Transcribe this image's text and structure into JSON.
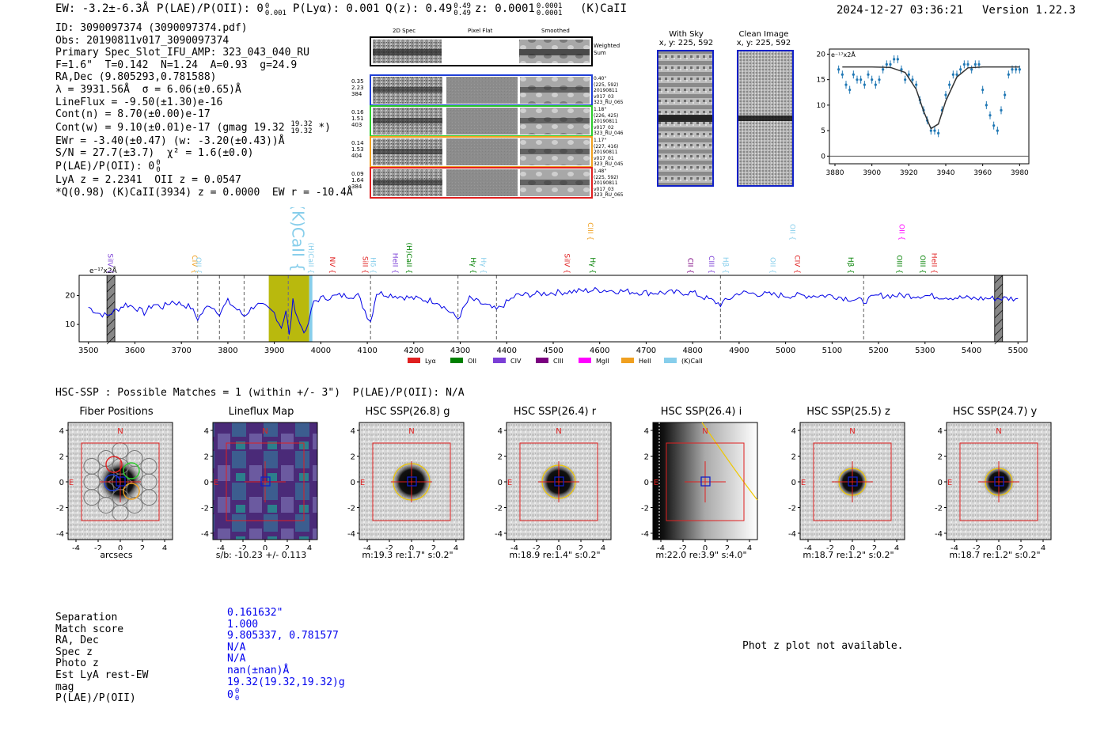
{
  "header": {
    "ew": "EW: -3.2±-6.3Å",
    "plae_label": "P(LAE)/P(OII): 0",
    "plae_sup": "0",
    "plae_sub": "0.001",
    "plya": "P(Lyα): 0.001",
    "qz_label": "Q(z): 0.49",
    "qz_sup": "0.49",
    "qz_sub": "0.49",
    "z_label": "z: 0.0001",
    "z_sup": "0.0001",
    "z_sub": "0.0001",
    "line_id": "(K)CaII",
    "datetime": "2024-12-27 03:36:21",
    "version": "Version 1.22.3"
  },
  "info": {
    "l1": "ID: 3090097374 (3090097374.pdf)",
    "l2": "Obs: 20190811v017_3090097374",
    "l3": "Primary Spec_Slot_IFU_AMP: 323_043_040_RU",
    "l4": "F=1.6\"  T=0.142  N=1.24  A=0.93  g=24.9",
    "l5": "RA,Dec (9.805293,0.781588)",
    "l6": "λ = 3931.56Å  σ = 6.06(±0.65)Å",
    "l7": "LineFlux = -9.50(±1.30)e-16",
    "l8": "Cont(n) = 8.70(±0.00)e-17",
    "l9": "Cont(w) = 9.10(±0.01)e-17 (gmag 19.32",
    "l9_sup": "19.32",
    "l9_sub": "19.32",
    "l9_end": "*)",
    "l10": "EWr = -3.40(±0.47) (w: -3.20(±0.43))Å",
    "l11": "S/N = 27.7(±3.7)  χ² = 1.6(±0.0)",
    "l12": "P(LAE)/P(OII): 0",
    "l12_sup": "0",
    "l12_sub": "0",
    "l13": "LyA z = 2.2341  OII z = 0.0547",
    "l14": "*Q(0.98) (K)CaII(3934) z = 0.0000  EW r = -10.4Å"
  },
  "cutouts": {
    "col_2d": "2D Spec",
    "col_flat": "Pixel Flat",
    "col_smooth": "Smoothed",
    "weighted": "Weighted Sum",
    "rows": [
      {
        "left": [
          "0.35",
          "2.23",
          "384"
        ],
        "right": [
          "0.40\"",
          "(225, 592)",
          "20190811",
          "v017_03",
          "323_RU_065"
        ],
        "color": "#1f3fd6"
      },
      {
        "left": [
          "0.16",
          "1.51",
          "403"
        ],
        "right": [
          "1.18\"",
          "(226, 425)",
          "20190811",
          "v017_02",
          "323_RU_046"
        ],
        "color": "#2dcc2d"
      },
      {
        "left": [
          "0.14",
          "1.53",
          "404"
        ],
        "right": [
          "1.17\"",
          "(227, 416)",
          "20190811",
          "v017_01",
          "323_RU_045"
        ],
        "color": "#f0a020"
      },
      {
        "left": [
          "0.09",
          "1.64",
          "384"
        ],
        "right": [
          "1.48\"",
          "(225, 592)",
          "20190811",
          "v017_03",
          "323_RU_065"
        ],
        "color": "#e02020"
      }
    ]
  },
  "sky": {
    "with_sky": "With Sky",
    "with_sky_xy": "x, y: 225, 592",
    "clean": "Clean Image",
    "clean_xy": "x, y: 225, 592"
  },
  "zoom_plot": {
    "unit": "e⁻¹⁷x2Å",
    "xticks": [
      "3880",
      "3900",
      "3920",
      "3940",
      "3960",
      "3980"
    ],
    "yticks": [
      "0",
      "5",
      "10",
      "15",
      "20"
    ]
  },
  "spectrum": {
    "unit": "e⁻¹⁷x2Å",
    "xticks": [
      "3500",
      "3600",
      "3700",
      "3800",
      "3900",
      "4000",
      "4100",
      "4200",
      "4300",
      "4400",
      "4500",
      "4600",
      "4700",
      "4800",
      "4900",
      "5000",
      "5100",
      "5200",
      "5300",
      "5400",
      "5500"
    ],
    "yticks": [
      "10",
      "20"
    ],
    "line_labels": [
      {
        "t": "SiIV",
        "w": 3537,
        "c": "#7b3fd6",
        "row": 1
      },
      {
        "t": "CIV",
        "w": 3718,
        "c": "#f0a020",
        "row": 1
      },
      {
        "t": "OII",
        "w": 3727,
        "c": "#87ceeb",
        "row": 1
      },
      {
        "t": "(K)CaII",
        "w": 3934,
        "c": "#87ceeb",
        "row": 0
      },
      {
        "t": "(H)CaII",
        "w": 3969,
        "c": "#87ceeb",
        "row": 1
      },
      {
        "t": "NV",
        "w": 4015,
        "c": "#e02020",
        "row": 1
      },
      {
        "t": "SiII",
        "w": 4085,
        "c": "#e02020",
        "row": 1
      },
      {
        "t": "Hδ",
        "w": 4102,
        "c": "#87ceeb",
        "row": 1
      },
      {
        "t": "HeII",
        "w": 4150,
        "c": "#7b3fd6",
        "row": 1
      },
      {
        "t": "(H)CaII",
        "w": 4180,
        "c": "#008000",
        "row": 1
      },
      {
        "t": "Hγ",
        "w": 4318,
        "c": "#008000",
        "row": 1
      },
      {
        "t": "Hγ",
        "w": 4340,
        "c": "#87ceeb",
        "row": 1
      },
      {
        "t": "SiIV",
        "w": 4520,
        "c": "#e02020",
        "row": 1
      },
      {
        "t": "CIII",
        "w": 4570,
        "c": "#f0a020",
        "row": 2
      },
      {
        "t": "Hγ",
        "w": 4575,
        "c": "#008000",
        "row": 1
      },
      {
        "t": "CII",
        "w": 4785,
        "c": "#7b0080",
        "row": 1
      },
      {
        "t": "CIII",
        "w": 4830,
        "c": "#7b3fd6",
        "row": 1
      },
      {
        "t": "Hβ",
        "w": 4861,
        "c": "#87ceeb",
        "row": 1
      },
      {
        "t": "OII",
        "w": 4962,
        "c": "#87ceeb",
        "row": 1
      },
      {
        "t": "OII",
        "w": 5005,
        "c": "#87ceeb",
        "row": 2
      },
      {
        "t": "CIV",
        "w": 5015,
        "c": "#e02020",
        "row": 1
      },
      {
        "t": "Hβ",
        "w": 5130,
        "c": "#008000",
        "row": 1
      },
      {
        "t": "OIII",
        "w": 5235,
        "c": "#008000",
        "row": 1
      },
      {
        "t": "OII",
        "w": 5240,
        "c": "#ff00ff",
        "row": 2
      },
      {
        "t": "OIII",
        "w": 5285,
        "c": "#008000",
        "row": 1
      },
      {
        "t": "HeII",
        "w": 5310,
        "c": "#e02020",
        "row": 1
      }
    ],
    "dashed_lines": [
      3735,
      3782,
      3835,
      3930,
      4107,
      4295,
      4378,
      4860,
      5168
    ],
    "legend": [
      {
        "label": "Lyα",
        "color": "#e02020"
      },
      {
        "label": "OII",
        "color": "#008000"
      },
      {
        "label": "CIV",
        "color": "#7b3fd6"
      },
      {
        "label": "CIII",
        "color": "#7b0080"
      },
      {
        "label": "MgII",
        "color": "#ff00ff"
      },
      {
        "label": "HeII",
        "color": "#f0a020"
      },
      {
        "label": "(K)CaII",
        "color": "#87ceeb"
      }
    ]
  },
  "hsc": {
    "title": "HSC-SSP : Possible Matches = 1 (within +/- 3\")  P(LAE)/P(OII): N/A",
    "panels": [
      {
        "title": "Fiber Positions",
        "caption": "arcsecs"
      },
      {
        "title": "Lineflux Map",
        "caption": "s/b: -10.23 +/- 0.113"
      },
      {
        "title": "HSC SSP(26.8) g",
        "caption": "m:19.3  re:1.7\"  s:0.2\""
      },
      {
        "title": "HSC SSP(26.4) r",
        "caption": "m:18.9  re:1.4\"  s:0.2\""
      },
      {
        "title": "HSC SSP(26.4) i",
        "caption": "m:22.0  re:3.9\"  s:4.0\""
      },
      {
        "title": "HSC SSP(25.5) z",
        "caption": "m:18.7  re:1.2\"  s:0.2\""
      },
      {
        "title": "HSC SSP(24.7) y",
        "caption": "m:18.7  re:1.2\"  s:0.2\""
      }
    ],
    "ticks": [
      "4",
      "2",
      "0",
      "-2",
      "-4"
    ],
    "xticks": [
      "-4",
      "-2",
      "0",
      "2",
      "4"
    ],
    "north": "N",
    "east": "E"
  },
  "match": {
    "labels": [
      "Separation",
      "Match score",
      "RA, Dec",
      "Spec z",
      "Photo z",
      "Est LyA rest-EW",
      "mag",
      "P(LAE)/P(OII)"
    ],
    "values": [
      "0.161632\"",
      "1.000",
      "9.805337, 0.781577",
      "N/A",
      "N/A",
      "nan(±nan)Å",
      "19.32(19.32,19.32)g",
      "0"
    ],
    "plae_sup": "0",
    "plae_sub": "0",
    "phot_z": "Phot z plot not available."
  },
  "chart_data": [
    {
      "type": "line",
      "title": "",
      "xlabel": "",
      "ylabel": "e⁻¹⁷x2Å",
      "xlim": [
        3480,
        5520
      ],
      "ylim": [
        4,
        27
      ],
      "series": [
        {
          "x": [
            3500,
            3520,
            3540,
            3560,
            3580,
            3600,
            3620,
            3640,
            3660,
            3680,
            3700,
            3720,
            3735,
            3760,
            3782,
            3800,
            3835,
            3860,
            3880,
            3900,
            3915,
            3925,
            3932,
            3940,
            3955,
            3968,
            3985,
            4000,
            4040,
            4080,
            4100,
            4107,
            4120,
            4160,
            4200,
            4250,
            4295,
            4320,
            4378,
            4420,
            4500,
            4600,
            4700,
            4800,
            4860,
            4900,
            5000,
            5100,
            5168,
            5200,
            5300,
            5400,
            5500
          ],
          "y": [
            16,
            14,
            13,
            15,
            17,
            16,
            14,
            17,
            16,
            18,
            17,
            16,
            12,
            17,
            14,
            18,
            13,
            17,
            16,
            14,
            9,
            15,
            6,
            18,
            10,
            7,
            18,
            19,
            20,
            20,
            13,
            11,
            21,
            20,
            19,
            18,
            12,
            19,
            15,
            20,
            21,
            22,
            21,
            21,
            17,
            21,
            20,
            20,
            18,
            20,
            20,
            19,
            19
          ]
        }
      ]
    },
    {
      "type": "scatter",
      "title": "",
      "xlabel": "",
      "ylabel": "e⁻¹⁷x2Å",
      "xlim": [
        3877,
        3985
      ],
      "ylim": [
        -1.5,
        21
      ],
      "series": [
        {
          "x": [
            3882,
            3884,
            3886,
            3888,
            3890,
            3892,
            3894,
            3896,
            3898,
            3900,
            3902,
            3904,
            3906,
            3908,
            3910,
            3912,
            3914,
            3916,
            3918,
            3920,
            3922,
            3924,
            3926,
            3928,
            3930,
            3932,
            3934,
            3936,
            3938,
            3940,
            3942,
            3944,
            3946,
            3948,
            3950,
            3952,
            3954,
            3956,
            3958,
            3960,
            3962,
            3964,
            3966,
            3968,
            3970,
            3972,
            3974,
            3976,
            3978,
            3980
          ],
          "y": [
            17,
            16,
            14,
            13,
            16,
            15,
            15,
            14,
            16,
            15,
            14,
            15,
            17,
            18,
            18,
            19,
            19,
            17,
            15,
            16,
            15,
            14,
            11,
            9,
            7,
            5,
            5,
            4.5,
            9,
            12,
            14,
            16,
            16,
            17,
            18,
            18,
            17,
            18,
            18,
            13,
            10,
            8,
            6,
            5,
            9,
            12,
            16,
            17,
            17,
            17
          ]
        },
        {
          "x": [
            3884,
            3900,
            3910,
            3918,
            3924,
            3928,
            3932,
            3936,
            3940,
            3946,
            3952,
            3960,
            3970,
            3980
          ],
          "y": [
            17.5,
            17.5,
            17.4,
            16.4,
            13.1,
            8.8,
            5.4,
            6.3,
            10.8,
            15.5,
            17.3,
            17.5,
            17.5,
            17.5
          ]
        }
      ]
    }
  ]
}
